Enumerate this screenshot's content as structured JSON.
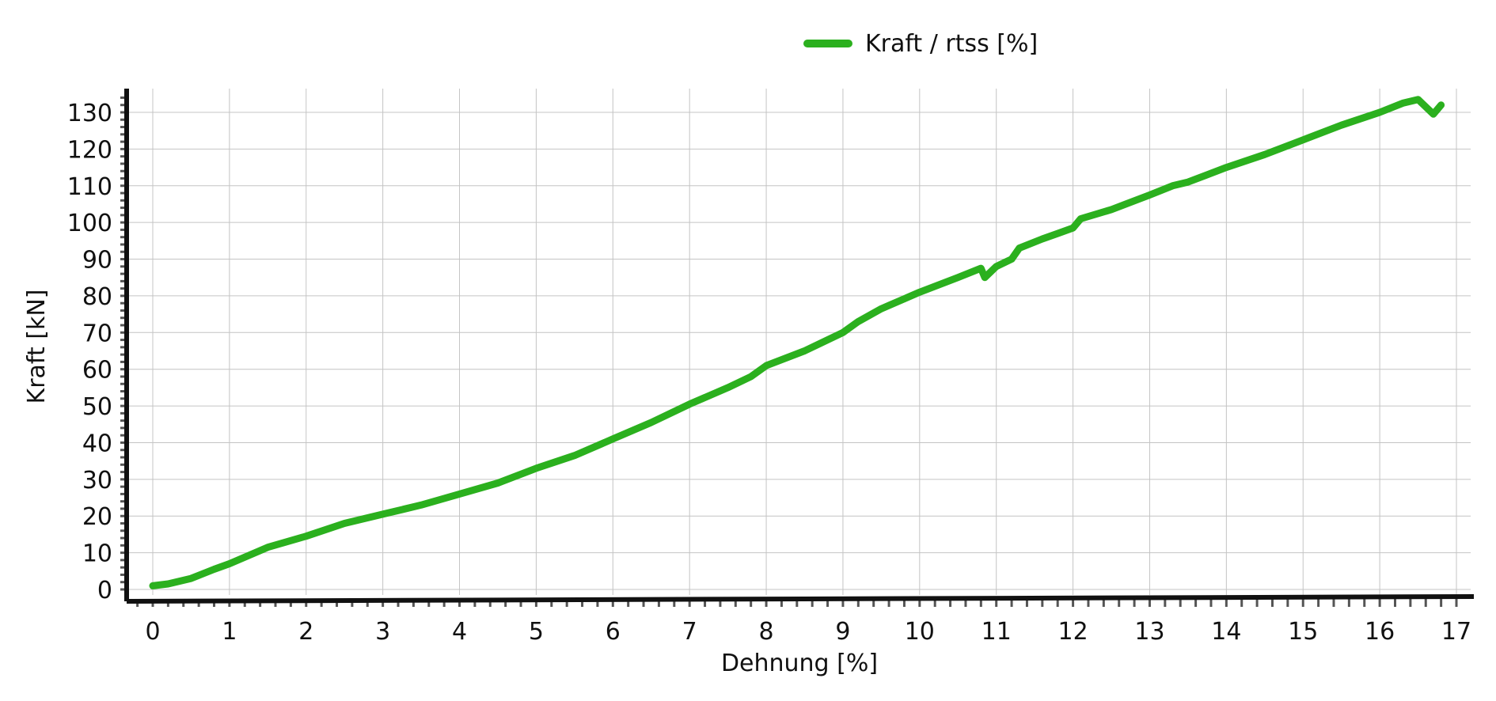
{
  "chart_data": {
    "type": "line",
    "xlabel": "Dehnung [%]",
    "ylabel": "Kraft [kN]",
    "xlim": [
      0,
      17
    ],
    "ylim": [
      0,
      130
    ],
    "x_ticks": [
      0,
      1,
      2,
      3,
      4,
      5,
      6,
      7,
      8,
      9,
      10,
      11,
      12,
      13,
      14,
      15,
      16,
      17
    ],
    "y_ticks": [
      0,
      10,
      20,
      30,
      40,
      50,
      60,
      70,
      80,
      90,
      100,
      110,
      120,
      130
    ],
    "grid": true,
    "legend_position": "top-center",
    "series": [
      {
        "name": "Kraft / rtss [%]",
        "color": "#2bb01e",
        "points": [
          [
            0,
            1
          ],
          [
            0.2,
            1.5
          ],
          [
            0.5,
            3
          ],
          [
            0.8,
            5.5
          ],
          [
            1,
            7
          ],
          [
            1.5,
            11.5
          ],
          [
            2,
            14.5
          ],
          [
            2.5,
            18
          ],
          [
            3,
            20.5
          ],
          [
            3.5,
            23
          ],
          [
            4,
            26
          ],
          [
            4.5,
            29
          ],
          [
            5,
            33
          ],
          [
            5.5,
            36.5
          ],
          [
            6,
            41
          ],
          [
            6.5,
            45.5
          ],
          [
            7,
            50.5
          ],
          [
            7.5,
            55
          ],
          [
            7.8,
            58
          ],
          [
            8,
            61
          ],
          [
            8.5,
            65
          ],
          [
            8.7,
            67
          ],
          [
            9,
            70
          ],
          [
            9.2,
            73
          ],
          [
            9.5,
            76.5
          ],
          [
            10,
            81
          ],
          [
            10.5,
            85
          ],
          [
            10.8,
            87.5
          ],
          [
            10.85,
            85
          ],
          [
            11,
            88
          ],
          [
            11.2,
            90
          ],
          [
            11.3,
            93
          ],
          [
            11.6,
            95.5
          ],
          [
            11.8,
            97
          ],
          [
            12,
            98.5
          ],
          [
            12.1,
            101
          ],
          [
            12.5,
            103.5
          ],
          [
            13,
            107.5
          ],
          [
            13.3,
            110
          ],
          [
            13.5,
            111
          ],
          [
            14,
            115
          ],
          [
            14.5,
            118.5
          ],
          [
            15,
            122.5
          ],
          [
            15.5,
            126.5
          ],
          [
            16,
            130
          ],
          [
            16.3,
            132.5
          ],
          [
            16.5,
            133.5
          ],
          [
            16.7,
            129.5
          ],
          [
            16.8,
            132
          ]
        ]
      }
    ]
  }
}
